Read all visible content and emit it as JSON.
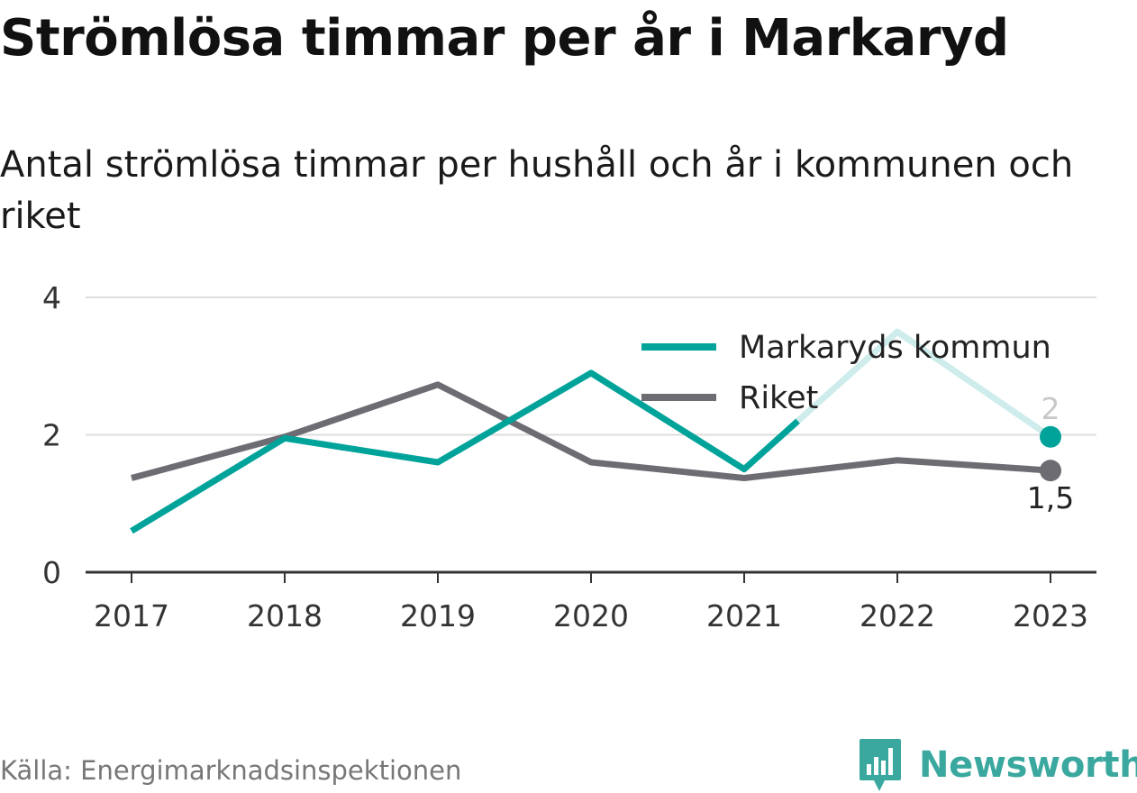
{
  "title": "Strömlösa timmar per år i Markaryd",
  "subtitle": "Antal strömlösa timmar per hushåll och år i kommunen och riket",
  "source": "Källa: Energimarknadsinspektionen",
  "brand": {
    "name": "Newsworthy",
    "color": "#3aa89e"
  },
  "chart_data": {
    "type": "line",
    "x": [
      "2017",
      "2018",
      "2019",
      "2020",
      "2021",
      "2022",
      "2023"
    ],
    "ylim": [
      0,
      4
    ],
    "yticks": [
      "0",
      "2",
      "4"
    ],
    "grid": true,
    "legend_position": "top-right",
    "series": [
      {
        "name": "Markaryds kommun",
        "color": "#00a39a",
        "faded_color": "#cdeceb",
        "values": [
          0.6,
          1.95,
          1.6,
          2.9,
          1.5,
          3.5,
          1.97
        ],
        "end_label": "2"
      },
      {
        "name": "Riket",
        "color": "#6d6c72",
        "values": [
          1.37,
          1.97,
          2.73,
          1.6,
          1.37,
          1.63,
          1.48
        ],
        "end_label": "1,5"
      }
    ]
  }
}
